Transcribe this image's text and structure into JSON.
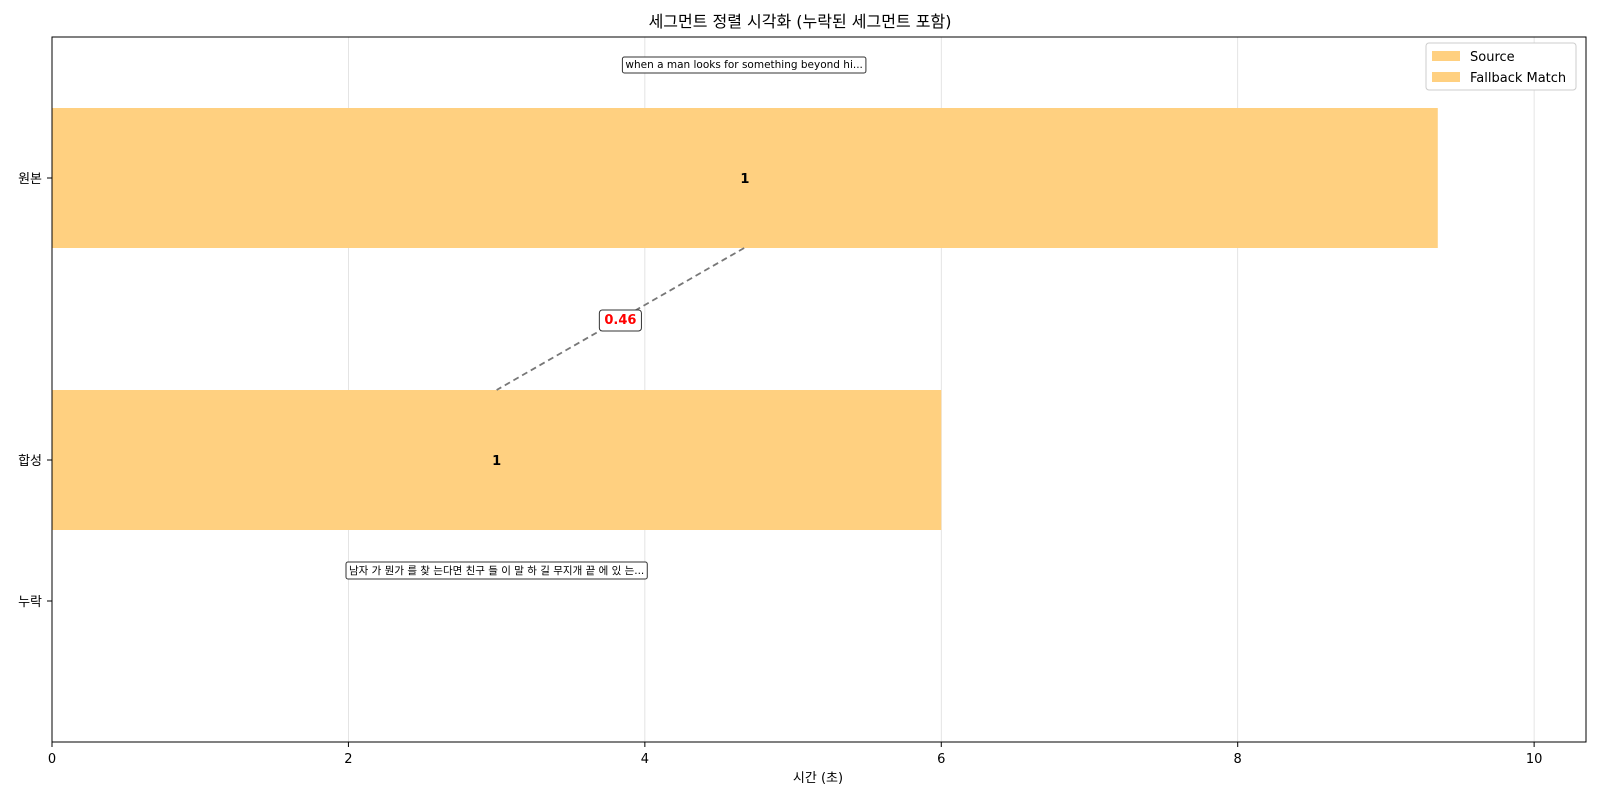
{
  "chart_data": {
    "type": "bar",
    "orientation": "horizontal",
    "title": "세그먼트 정렬 시각화 (누락된 세그먼트 포함)",
    "xlabel": "시간 (초)",
    "ylabel": "",
    "xlim": [
      0,
      10.35
    ],
    "xticks": [
      0,
      2,
      4,
      6,
      8,
      10
    ],
    "categories": [
      "원본",
      "합성",
      "누락"
    ],
    "grid": "x-only",
    "legend_position": "top-right",
    "legend": [
      {
        "label": "Source",
        "color": "#ffd080"
      },
      {
        "label": "Fallback Match",
        "color": "#ffd080"
      }
    ],
    "segments": [
      {
        "row": "원본",
        "start": 0,
        "end": 9.35,
        "label": "1",
        "color": "#ffd080"
      },
      {
        "row": "합성",
        "start": 0,
        "end": 6.0,
        "label": "1",
        "color": "#ffd080"
      }
    ],
    "connections": [
      {
        "from_row": "원본",
        "from_x": 4.67,
        "to_row": "합성",
        "to_x": 3.0,
        "score": "0.46",
        "score_color": "#ff0000"
      }
    ],
    "annotations": [
      {
        "row": "원본",
        "x": 4.67,
        "text": "when a man looks for something beyond hi..."
      },
      {
        "row": "합성",
        "x": 3.0,
        "text": "남자 가 뭔가 를 찾 는다면 친구 들 이 말 하 길 무지개 끝 에 있 는..."
      }
    ]
  }
}
